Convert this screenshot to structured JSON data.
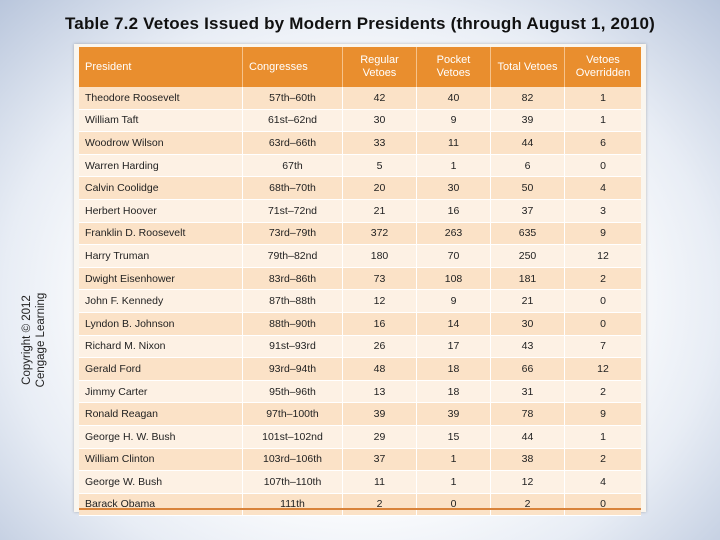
{
  "title": "Table 7.2 Vetoes Issued by Modern Presidents (through August 1, 2010)",
  "copyright": "Copyright © 2012 Cengage Learning",
  "table": {
    "headers": [
      "President",
      "Congresses",
      "Regular Vetoes",
      "Pocket Vetoes",
      "Total Vetoes",
      "Vetoes Overridden"
    ],
    "rows": [
      [
        "Theodore Roosevelt",
        "57th–60th",
        "42",
        "40",
        "82",
        "1"
      ],
      [
        "William Taft",
        "61st–62nd",
        "30",
        "9",
        "39",
        "1"
      ],
      [
        "Woodrow Wilson",
        "63rd–66th",
        "33",
        "11",
        "44",
        "6"
      ],
      [
        "Warren Harding",
        "67th",
        "5",
        "1",
        "6",
        "0"
      ],
      [
        "Calvin Coolidge",
        "68th–70th",
        "20",
        "30",
        "50",
        "4"
      ],
      [
        "Herbert Hoover",
        "71st–72nd",
        "21",
        "16",
        "37",
        "3"
      ],
      [
        "Franklin D. Roosevelt",
        "73rd–79th",
        "372",
        "263",
        "635",
        "9"
      ],
      [
        "Harry Truman",
        "79th–82nd",
        "180",
        "70",
        "250",
        "12"
      ],
      [
        "Dwight Eisenhower",
        "83rd–86th",
        "73",
        "108",
        "181",
        "2"
      ],
      [
        "John F. Kennedy",
        "87th–88th",
        "12",
        "9",
        "21",
        "0"
      ],
      [
        "Lyndon B. Johnson",
        "88th–90th",
        "16",
        "14",
        "30",
        "0"
      ],
      [
        "Richard M. Nixon",
        "91st–93rd",
        "26",
        "17",
        "43",
        "7"
      ],
      [
        "Gerald Ford",
        "93rd–94th",
        "48",
        "18",
        "66",
        "12"
      ],
      [
        "Jimmy Carter",
        "95th–96th",
        "13",
        "18",
        "31",
        "2"
      ],
      [
        "Ronald Reagan",
        "97th–100th",
        "39",
        "39",
        "78",
        "9"
      ],
      [
        "George H. W. Bush",
        "101st–102nd",
        "29",
        "15",
        "44",
        "1"
      ],
      [
        "William Clinton",
        "103rd–106th",
        "37",
        "1",
        "38",
        "2"
      ],
      [
        "George W. Bush",
        "107th–110th",
        "11",
        "1",
        "12",
        "4"
      ],
      [
        "Barack Obama",
        "111th",
        "2",
        "0",
        "2",
        "0"
      ]
    ]
  }
}
